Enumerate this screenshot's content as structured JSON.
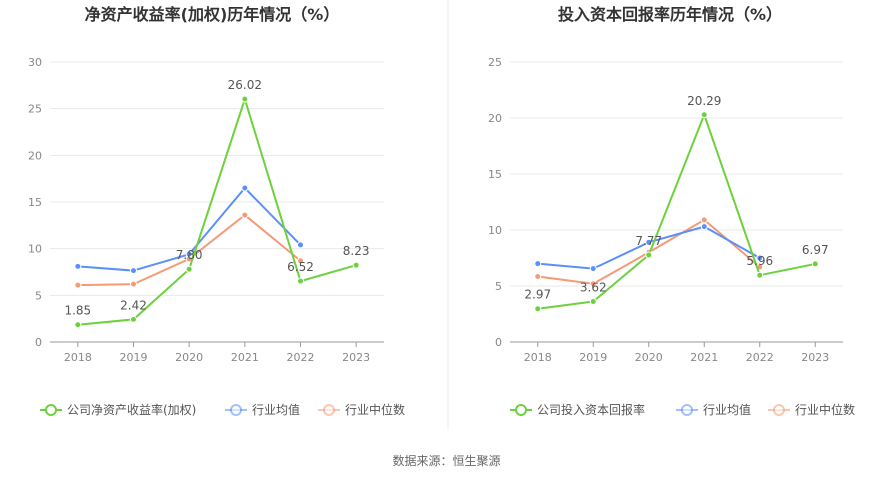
{
  "source_text": "数据来源：恒生聚源",
  "colors": {
    "company": "#6dd13e",
    "average": "#5b8ff9",
    "median": "#f59a78",
    "grid": "#e8e8e8",
    "axis": "#999999"
  },
  "chart_data": [
    {
      "type": "line",
      "title": "净资产收益率(加权)历年情况（%）",
      "categories": [
        "2018",
        "2019",
        "2020",
        "2021",
        "2022",
        "2023"
      ],
      "ylim": [
        0,
        30
      ],
      "yticks": [
        "0",
        "5",
        "10",
        "15",
        "20",
        "25",
        "30"
      ],
      "grid": true,
      "legend_position": "bottom",
      "series": [
        {
          "name": "公司净资产收益率(加权)",
          "key": "company",
          "values": [
            1.85,
            2.42,
            7.8,
            26.02,
            6.52,
            8.23
          ],
          "labels": [
            "1.85",
            "2.42",
            "7.80",
            "26.02",
            "6.52",
            "8.23"
          ]
        },
        {
          "name": "行业均值",
          "key": "average",
          "values": [
            8.1,
            7.65,
            9.4,
            16.5,
            10.4,
            null
          ]
        },
        {
          "name": "行业中位数",
          "key": "median",
          "values": [
            6.1,
            6.2,
            8.9,
            13.6,
            8.7,
            null
          ]
        }
      ]
    },
    {
      "type": "line",
      "title": "投入资本回报率历年情况（%）",
      "categories": [
        "2018",
        "2019",
        "2020",
        "2021",
        "2022",
        "2023"
      ],
      "ylim": [
        0,
        25
      ],
      "yticks": [
        "0",
        "5",
        "10",
        "15",
        "20",
        "25"
      ],
      "grid": true,
      "legend_position": "bottom",
      "series": [
        {
          "name": "公司投入资本回报率",
          "key": "company",
          "values": [
            2.97,
            3.62,
            7.77,
            20.29,
            5.96,
            6.97
          ],
          "labels": [
            "2.97",
            "3.62",
            "7.77",
            "20.29",
            "5.96",
            "6.97"
          ]
        },
        {
          "name": "行业均值",
          "key": "average",
          "values": [
            7.0,
            6.55,
            8.9,
            10.3,
            7.5,
            null
          ]
        },
        {
          "name": "行业中位数",
          "key": "median",
          "values": [
            5.85,
            5.2,
            8.0,
            10.9,
            6.7,
            null
          ]
        }
      ]
    }
  ]
}
